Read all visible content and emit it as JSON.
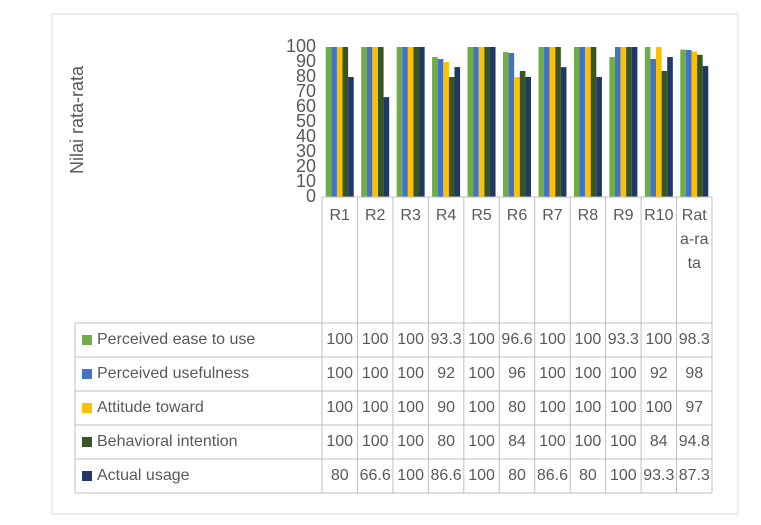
{
  "chart_data": {
    "type": "bar",
    "ylabel": "Nilai rata-rata",
    "categories": [
      "R1",
      "R2",
      "R3",
      "R4",
      "R5",
      "R6",
      "R7",
      "R8",
      "R9",
      "R10",
      "Rata-rata"
    ],
    "series": [
      {
        "name": "Perceived ease to use",
        "color": "#70ad47",
        "values": [
          100,
          100,
          100,
          93.3,
          100,
          96.6,
          100,
          100,
          93.3,
          100,
          98.3
        ]
      },
      {
        "name": "Perceived usefulness",
        "color": "#4472c4",
        "values": [
          100,
          100,
          100,
          92,
          100,
          96,
          100,
          100,
          100,
          92,
          98
        ]
      },
      {
        "name": "Attitude toward",
        "color": "#ffc000",
        "values": [
          100,
          100,
          100,
          90,
          100,
          80,
          100,
          100,
          100,
          100,
          97
        ]
      },
      {
        "name": "Behavioral intention",
        "color": "#375623",
        "values": [
          100,
          100,
          100,
          80,
          100,
          84,
          100,
          100,
          100,
          84,
          94.8
        ]
      },
      {
        "name": "Actual usage",
        "color": "#203864",
        "values": [
          80,
          66.6,
          100,
          86.6,
          100,
          80,
          86.6,
          80,
          100,
          93.3,
          87.3
        ]
      }
    ],
    "ylim": [
      0,
      100
    ],
    "yticks": [
      0,
      10,
      20,
      30,
      40,
      50,
      60,
      70,
      80,
      90,
      100
    ],
    "grid": false,
    "data_table": true
  }
}
